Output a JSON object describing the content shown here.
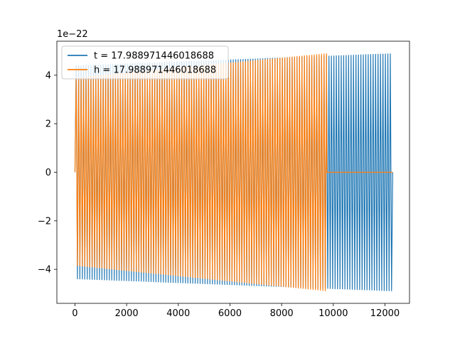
{
  "chart_data": {
    "type": "line",
    "title": "",
    "xlabel": "",
    "ylabel": "",
    "y_offset_label": "1e−22",
    "xlim": [
      -700,
      12950
    ],
    "ylim": [
      -5.4,
      5.4
    ],
    "x_ticks": [
      0,
      2000,
      4000,
      6000,
      8000,
      10000,
      12000
    ],
    "x_tick_labels": [
      "0",
      "2000",
      "4000",
      "6000",
      "8000",
      "10000",
      "12000"
    ],
    "y_ticks": [
      -4,
      -2,
      0,
      2,
      4
    ],
    "y_tick_labels": [
      "−4",
      "−2",
      "0",
      "2",
      "4"
    ],
    "grid": false,
    "legend_position": "upper-left",
    "series": [
      {
        "name": "t = 17.988971446018688",
        "color": "#1f77b4",
        "x_start": 0,
        "x_end": 12300,
        "oscillation_period": 95,
        "amplitude_start": 4.4,
        "amplitude_end": 4.9,
        "zero_after_x": null
      },
      {
        "name": "h = 17.988971446018688",
        "color": "#ff7f0e",
        "x_start": 0,
        "x_end": 12300,
        "oscillation_period": 95,
        "upper_amplitude_start": 3.9,
        "upper_amplitude_end": 4.9,
        "lower_amplitude_start": 3.85,
        "lower_amplitude_end": 4.9,
        "zero_after_x": 9750
      }
    ]
  }
}
